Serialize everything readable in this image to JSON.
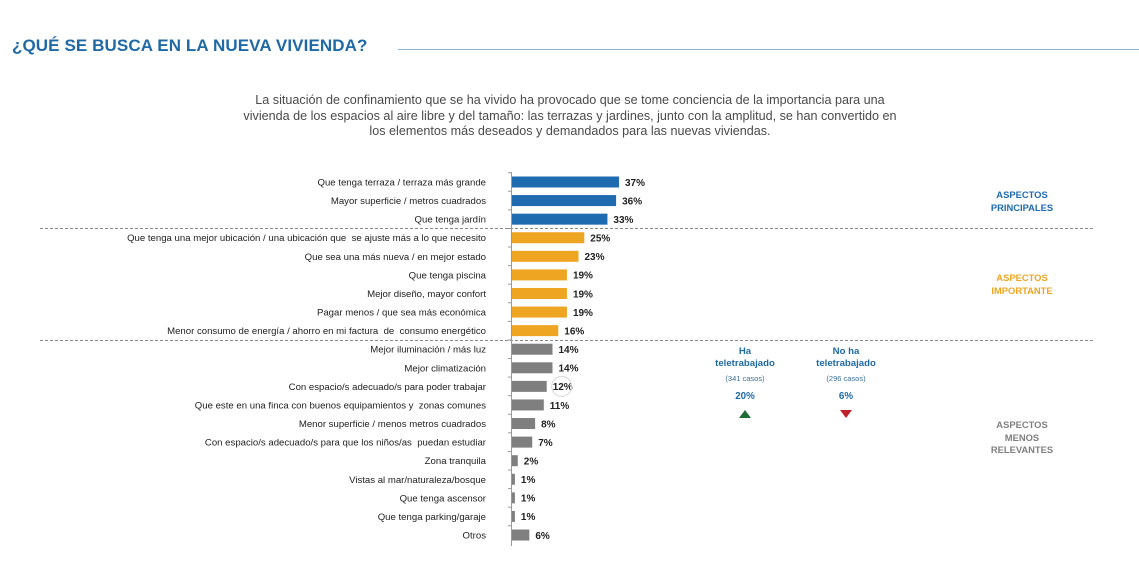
{
  "header": {
    "title": "¿QUÉ SE BUSCA EN LA NUEVA VIVIENDA?",
    "intro": "La situación de confinamiento que se ha vivido ha provocado que se tome conciencia de la importancia para una vivienda de los espacios al aire libre y del tamaño: las terrazas y jardines, junto con la amplitud, se han convertido en los elementos más deseados y demandados para las nuevas viviendas."
  },
  "colors": {
    "title": "#1f6aa5",
    "principales": "#1f6bb0",
    "importante": "#eea522",
    "menos": "#7f7f7f"
  },
  "groups": {
    "principales": {
      "label_line1": "ASPECTOS",
      "label_line2": "PRINCIPALES"
    },
    "importante": {
      "label_line1": "ASPECTOS",
      "label_line2": "IMPORTANTE"
    },
    "menos": {
      "label_line1": "ASPECTOS",
      "label_line2": "MENOS",
      "label_line3": "RELEVANTES"
    }
  },
  "teletrabajo": {
    "ha": {
      "line1": "Ha",
      "line2": "teletrabajado",
      "cases": "(341 casos)",
      "value": "20%",
      "trend": "up"
    },
    "no_ha": {
      "line1": "No ha",
      "line2": "teletrabajado",
      "cases": "(296 casos)",
      "value": "6%",
      "trend": "down"
    }
  },
  "chart_data": {
    "type": "bar",
    "orientation": "horizontal",
    "title": "¿QUÉ SE BUSCA EN LA NUEVA VIVIENDA?",
    "xlabel": "",
    "ylabel": "",
    "unit": "%",
    "xlim": [
      0,
      40
    ],
    "grid": false,
    "highlighted_value": "Con espacio/s adecuado/s para poder trabajar",
    "categories": [
      "Que tenga terraza / terraza más grande",
      "Mayor superficie / metros cuadrados",
      "Que tenga jardín",
      "Que tenga una mejor ubicación / una ubicación que  se ajuste más a lo que necesito",
      "Que sea una más nueva / en mejor estado",
      "Que tenga piscina",
      "Mejor diseño, mayor confort",
      "Pagar menos / que sea más económica",
      "Menor consumo de energía / ahorro en mi factura  de  consumo energético",
      "Mejor iluminación / más luz",
      "Mejor climatización",
      "Con espacio/s adecuado/s para poder trabajar",
      "Que este en una finca con buenos equipamientos y  zonas comunes",
      "Menor superficie / menos metros cuadrados",
      "Con espacio/s adecuado/s para que los niños/as  puedan estudiar",
      "Zona tranquila",
      "Vistas al mar/naturaleza/bosque",
      "Que tenga ascensor",
      "Que tenga parking/garaje",
      "Otros"
    ],
    "values": [
      37,
      36,
      33,
      25,
      23,
      19,
      19,
      19,
      16,
      14,
      14,
      12,
      11,
      8,
      7,
      2,
      1,
      1,
      1,
      6
    ],
    "value_labels": [
      "37%",
      "36%",
      "33%",
      "25%",
      "23%",
      "19%",
      "19%",
      "19%",
      "16%",
      "14%",
      "14%",
      "12%",
      "11%",
      "8%",
      "7%",
      "2%",
      "1%",
      "1%",
      "1%",
      "6%"
    ],
    "group_of": [
      "principales",
      "principales",
      "principales",
      "importante",
      "importante",
      "importante",
      "importante",
      "importante",
      "importante",
      "menos",
      "menos",
      "menos",
      "menos",
      "menos",
      "menos",
      "menos",
      "menos",
      "menos",
      "menos",
      "menos"
    ]
  }
}
